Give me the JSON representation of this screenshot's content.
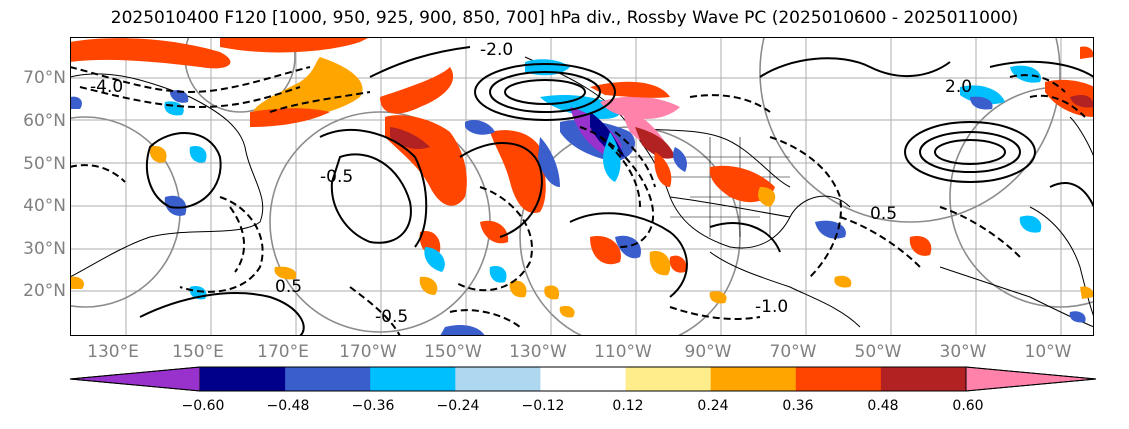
{
  "title": "2025010400 F120 [1000, 950, 925, 900, 850, 700] hPa div., Rossby Wave PC (2025010600 - 2025011000)",
  "lat_labels": [
    "70°N",
    "60°N",
    "50°N",
    "40°N",
    "30°N",
    "20°N"
  ],
  "lon_labels": [
    "130°E",
    "150°E",
    "170°E",
    "170°W",
    "150°W",
    "130°W",
    "110°W",
    "90°W",
    "70°W",
    "50°W",
    "30°W",
    "10°W"
  ],
  "contour_labels": [
    "-4.0",
    "-2.0",
    "-0.5",
    "0.5",
    "-1.0",
    "2.0",
    "-0.5",
    "0.5"
  ],
  "colorbar": {
    "ticks": [
      "−0.60",
      "−0.48",
      "−0.36",
      "−0.24",
      "−0.12",
      "0.12",
      "0.24",
      "0.36",
      "0.48",
      "0.60"
    ],
    "colors": [
      "#9932cc",
      "#00008b",
      "#3a5fcd",
      "#00bfff",
      "#add8f0",
      "#ffffff",
      "#ffec8b",
      "#ffa500",
      "#ff4500",
      "#b22222",
      "#ff82ab"
    ]
  }
}
